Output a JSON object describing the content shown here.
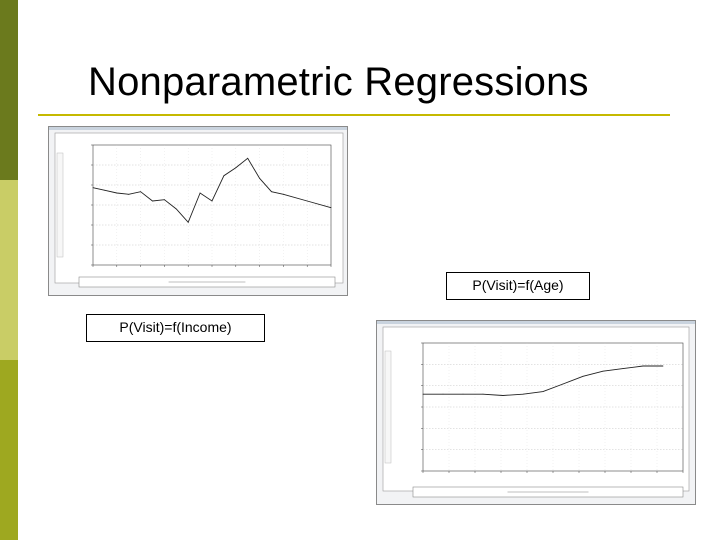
{
  "slide": {
    "title": "Nonparametric Regressions",
    "accent_color": "#c5b900",
    "sidebar_colors": [
      "#6b7a1d",
      "#c9cd66",
      "#9ea820"
    ]
  },
  "callouts": {
    "age": "P(Visit)=f(Age)",
    "income": "P(Visit)=f(Income)"
  },
  "chart_data": [
    {
      "type": "line",
      "x": [
        0,
        0.5,
        1,
        1.5,
        2,
        2.5,
        3,
        3.5,
        4,
        4.5,
        5,
        5.5,
        6,
        6.5,
        7,
        7.5,
        8,
        9,
        10
      ],
      "y": [
        0.68,
        0.66,
        0.64,
        0.63,
        0.65,
        0.58,
        0.59,
        0.52,
        0.42,
        0.64,
        0.58,
        0.77,
        0.83,
        0.9,
        0.75,
        0.65,
        0.63,
        0.58,
        0.53
      ],
      "xlim": [
        0,
        10
      ],
      "ylim": [
        0.1,
        1.0
      ],
      "grid": true
    },
    {
      "type": "line",
      "x": [
        20,
        25,
        30,
        35,
        40,
        45,
        50,
        55,
        60,
        65,
        70,
        75,
        80
      ],
      "y": [
        0.7,
        0.7,
        0.7,
        0.7,
        0.695,
        0.7,
        0.71,
        0.74,
        0.77,
        0.79,
        0.8,
        0.81,
        0.81
      ],
      "xlim": [
        20,
        85
      ],
      "ylim": [
        0.4,
        0.9
      ],
      "grid": true
    }
  ]
}
